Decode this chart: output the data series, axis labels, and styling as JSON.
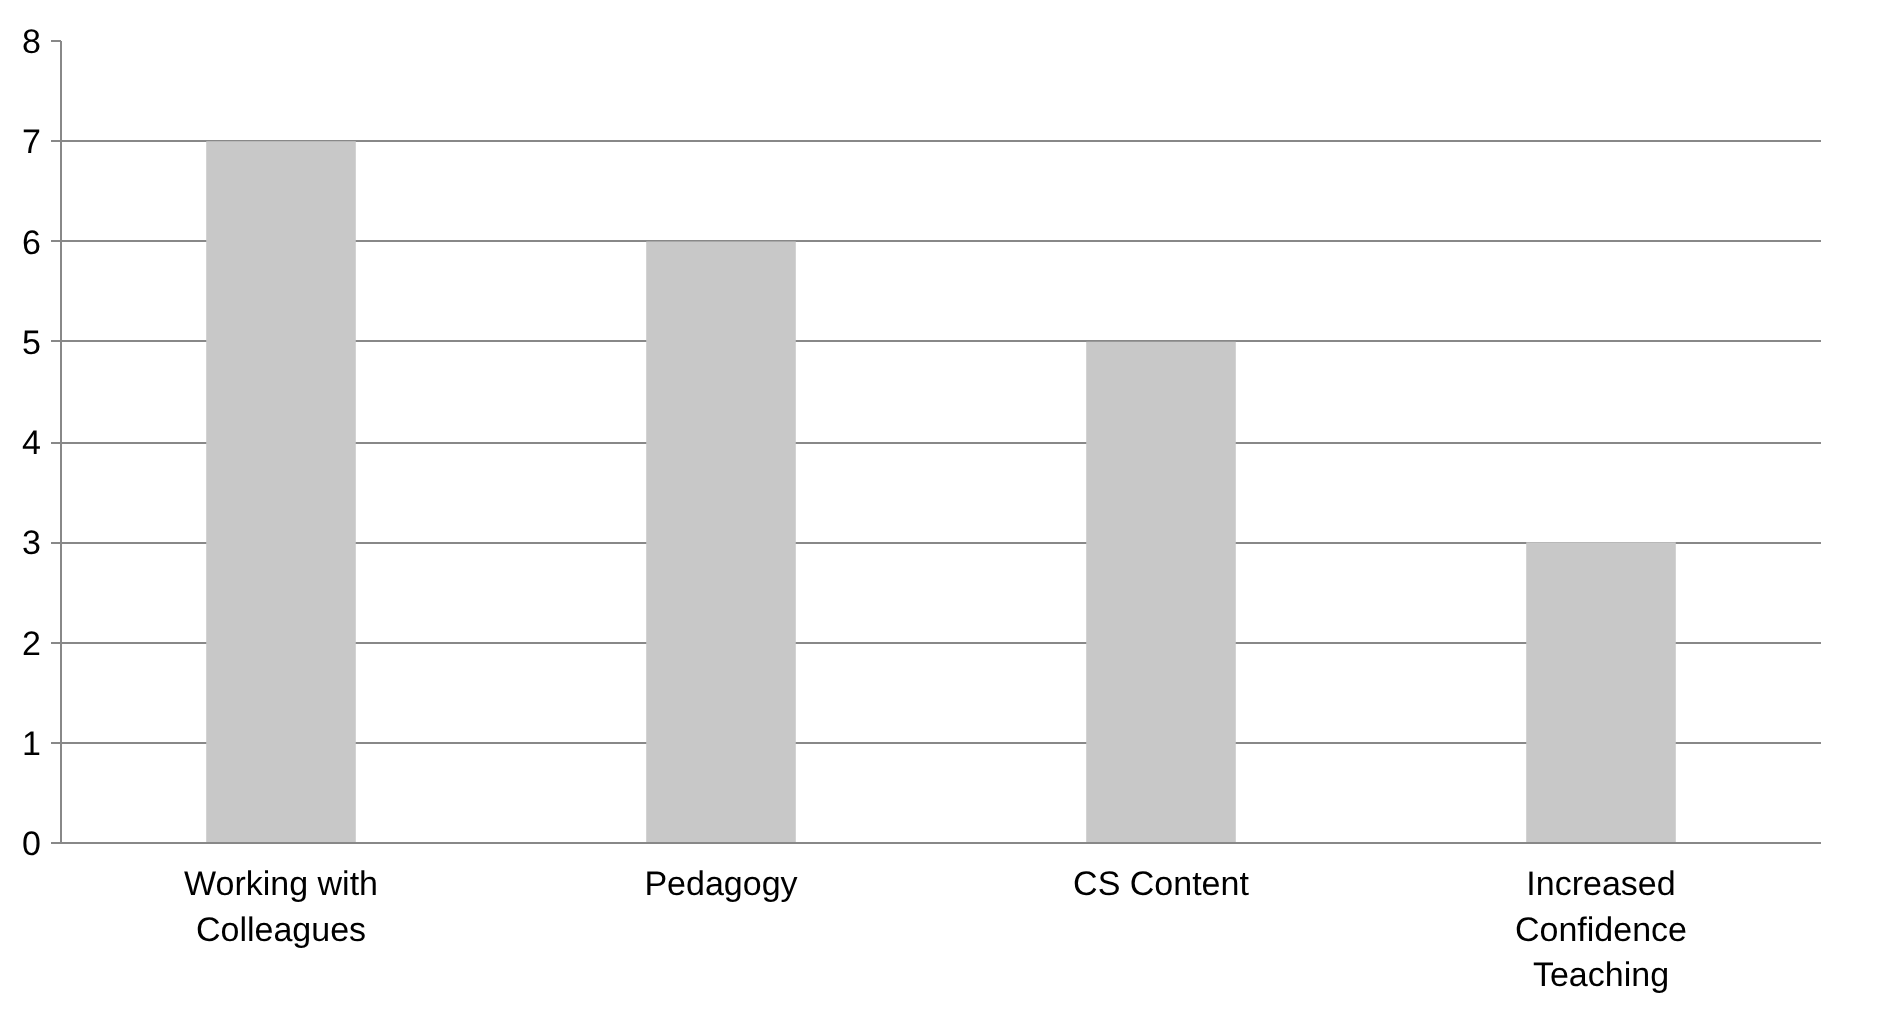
{
  "chart_data": {
    "type": "bar",
    "categories": [
      "Working with Colleagues",
      "Pedagogy",
      "CS Content",
      "Increased Confidence Teaching"
    ],
    "values": [
      7,
      6,
      5,
      3
    ],
    "color": "#c8c8c8",
    "ylim": [
      0,
      8
    ],
    "yticks": [
      0,
      1,
      2,
      3,
      4,
      5,
      6,
      7,
      8
    ],
    "grid": "y"
  }
}
